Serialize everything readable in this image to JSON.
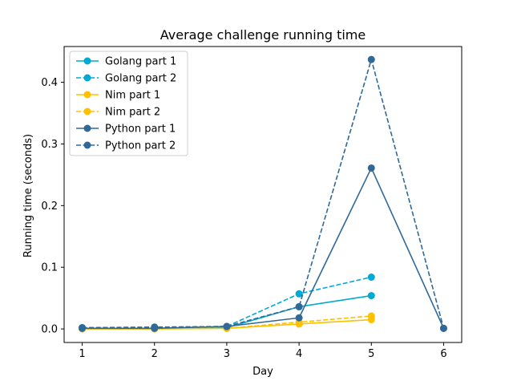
{
  "chart_data": {
    "type": "line",
    "title": "Average challenge running time",
    "xlabel": "Day",
    "ylabel": "Running time (seconds)",
    "x": [
      1,
      2,
      3,
      4,
      5,
      6
    ],
    "xlim": [
      0.75,
      6.25
    ],
    "ylim": [
      -0.022,
      0.458
    ],
    "xticks": [
      1,
      2,
      3,
      4,
      5,
      6
    ],
    "yticks": [
      0.0,
      0.1,
      0.2,
      0.3,
      0.4
    ],
    "ytick_labels": [
      "0.0",
      "0.1",
      "0.2",
      "0.3",
      "0.4"
    ],
    "grid": false,
    "legend_position": "top-left",
    "series": [
      {
        "name": "Golang part 1",
        "color": "#00aad4",
        "dash": "solid",
        "x": [
          1,
          2,
          3,
          4,
          5
        ],
        "values": [
          0.001,
          0.001,
          0.002,
          0.036,
          0.054
        ]
      },
      {
        "name": "Golang part 2",
        "color": "#00aad4",
        "dash": "dashed",
        "x": [
          1,
          2,
          3,
          4,
          5
        ],
        "values": [
          0.002,
          0.002,
          0.004,
          0.057,
          0.084
        ]
      },
      {
        "name": "Nim part 1",
        "color": "#ffc000",
        "dash": "solid",
        "x": [
          1,
          2,
          3,
          4,
          5
        ],
        "values": [
          0.0,
          0.0,
          0.001,
          0.008,
          0.015
        ]
      },
      {
        "name": "Nim part 2",
        "color": "#ffc000",
        "dash": "dashed",
        "x": [
          1,
          2,
          3,
          4,
          5
        ],
        "values": [
          0.001,
          0.001,
          0.001,
          0.011,
          0.021
        ]
      },
      {
        "name": "Python part 1",
        "color": "#306998",
        "dash": "solid",
        "x": [
          1,
          2,
          3,
          4,
          5,
          6
        ],
        "values": [
          0.001,
          0.001,
          0.004,
          0.018,
          0.261,
          0.001
        ]
      },
      {
        "name": "Python part 2",
        "color": "#306998",
        "dash": "dashed",
        "x": [
          1,
          2,
          3,
          4,
          5,
          6
        ],
        "values": [
          0.002,
          0.003,
          0.004,
          0.036,
          0.437,
          0.001
        ]
      }
    ]
  }
}
